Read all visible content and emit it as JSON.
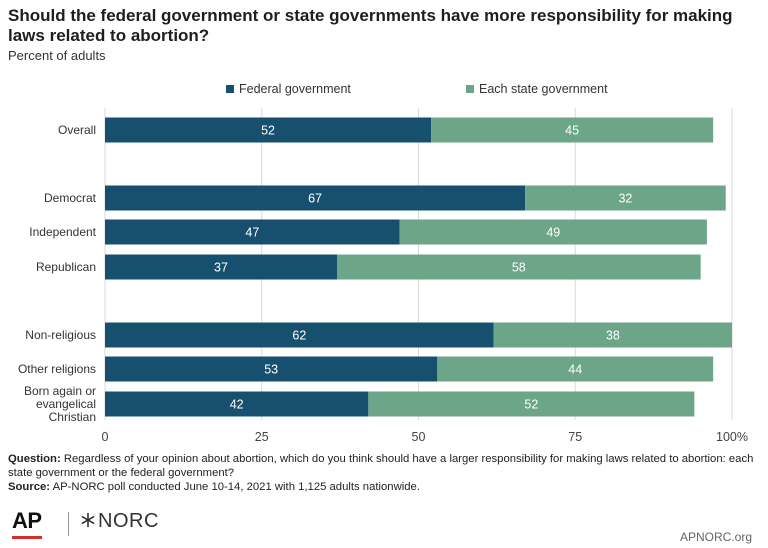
{
  "header": {
    "title": "Should the federal government or state governments have more responsibility for making laws related to abortion?",
    "subtitle": "Percent of adults"
  },
  "legend": {
    "federal": "Federal government",
    "state": "Each state government"
  },
  "colors": {
    "federal": "#17506e",
    "state": "#6da588",
    "grid": "#d9d9d9"
  },
  "chart_data": {
    "type": "bar",
    "orientation": "horizontal",
    "stacked": true,
    "categories": [
      "Overall",
      "Democrat",
      "Independent",
      "Republican",
      "Non-religious",
      "Other religions",
      "Born again or evangelical Christian"
    ],
    "series": [
      {
        "name": "Federal government",
        "values": [
          52,
          67,
          47,
          37,
          62,
          53,
          42
        ]
      },
      {
        "name": "Each state government",
        "values": [
          45,
          32,
          49,
          58,
          38,
          44,
          52
        ]
      }
    ],
    "xlim": [
      0,
      100
    ],
    "xticks": [
      "0",
      "25",
      "50",
      "75",
      "100%"
    ],
    "grid": true,
    "legend_position": "top"
  },
  "footnote": {
    "question_label": "Question:",
    "question_text": "Regardless of your opinion about abortion, which do you think should have a larger responsibility for making laws related to abortion: each state government or the federal government?",
    "source_label": "Source:",
    "source_text": "AP-NORC poll conducted June 10-14, 2021 with 1,125 adults nationwide."
  },
  "branding": {
    "ap": "AP",
    "norc": "NORC",
    "site": "APNORC.org"
  }
}
